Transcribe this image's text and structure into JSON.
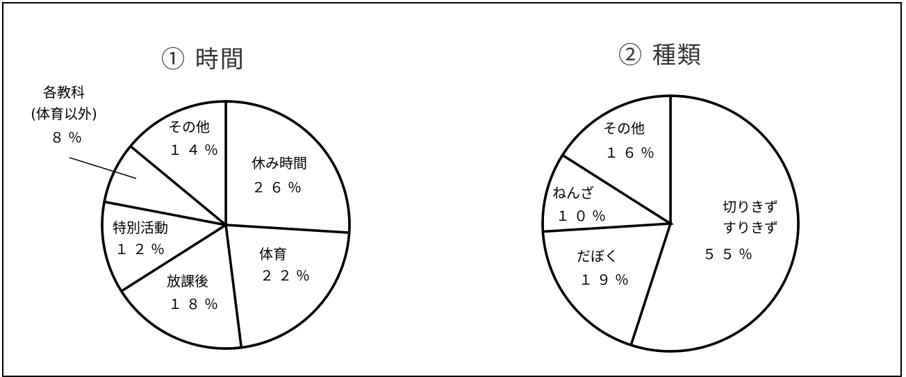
{
  "chart_data": [
    {
      "type": "pie",
      "title": "① 時間",
      "start_angle_deg": 0,
      "direction": "clockwise",
      "slices": [
        {
          "label": "休み時間",
          "value": 26,
          "value_label": "２６％"
        },
        {
          "label": "体育",
          "value": 22,
          "value_label": "２２％"
        },
        {
          "label": "放課後",
          "value": 18,
          "value_label": "１８％"
        },
        {
          "label": "特別活動",
          "value": 12,
          "value_label": "１２％"
        },
        {
          "label": "各教科(体育以外)",
          "label_lines": [
            "各教科",
            "(体育以外)"
          ],
          "value": 8,
          "value_label": "８％",
          "leader_line": true
        },
        {
          "label": "その他",
          "value": 14,
          "value_label": "１４％"
        }
      ]
    },
    {
      "type": "pie",
      "title": "② 種類",
      "start_angle_deg": 0,
      "direction": "clockwise",
      "slices": [
        {
          "label": "切りきずすりきず",
          "label_lines": [
            "切りきず",
            "すりきず"
          ],
          "value": 55,
          "value_label": "５５％"
        },
        {
          "label": "だぼく",
          "value": 19,
          "value_label": "１９％"
        },
        {
          "label": "ねんざ",
          "value": 10,
          "value_label": "１０％"
        },
        {
          "label": "その他",
          "value": 16,
          "value_label": "１６％"
        }
      ]
    }
  ]
}
